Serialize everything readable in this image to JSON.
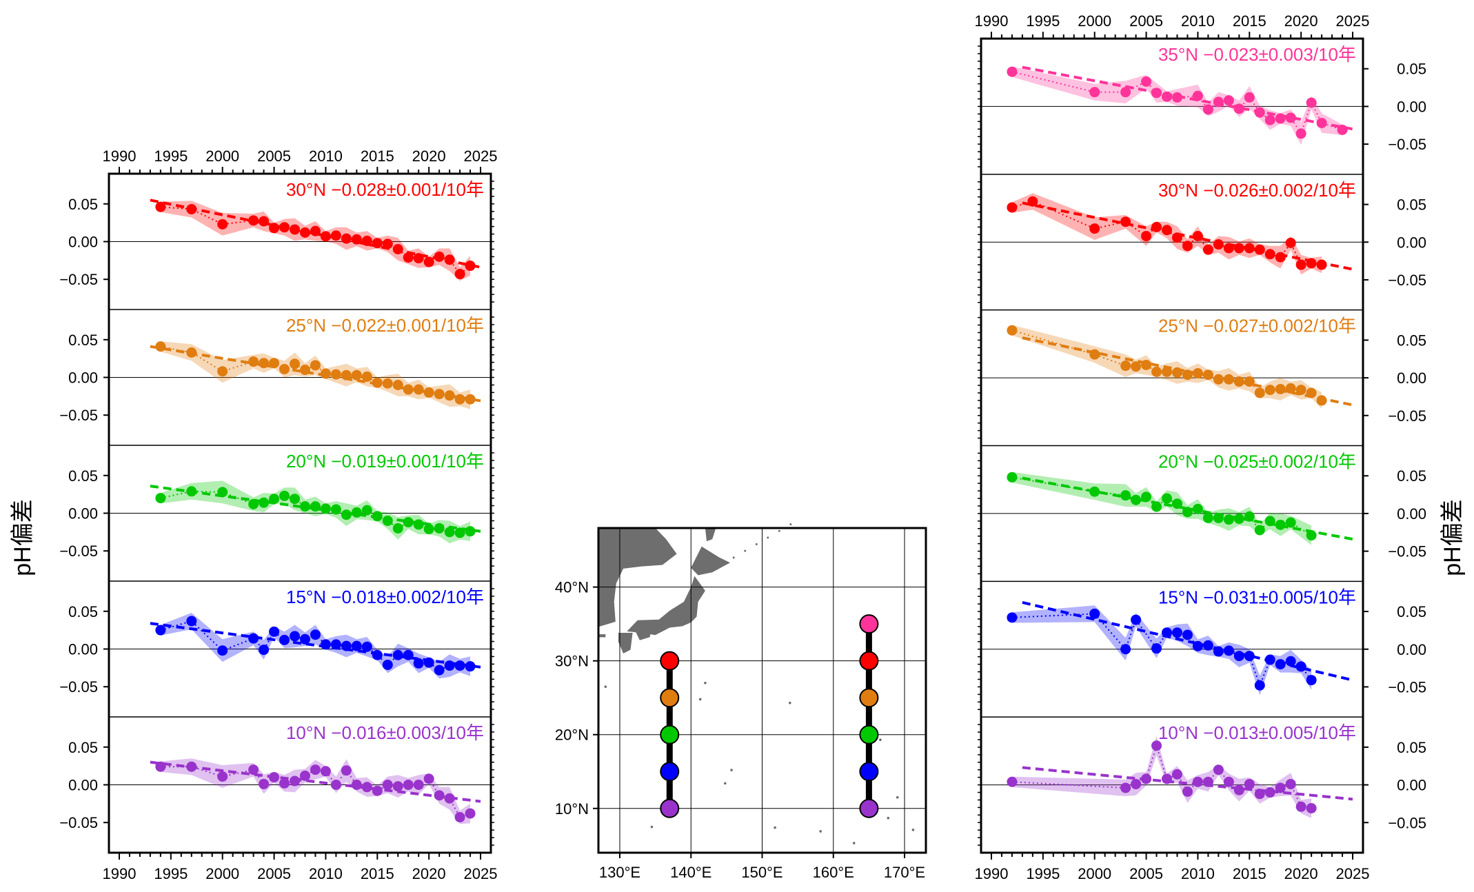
{
  "figure": {
    "ylabel": "pH偏差",
    "x_ticks": [
      "1990",
      "1995",
      "2000",
      "2005",
      "2010",
      "2015",
      "2020",
      "2025"
    ],
    "y_ticks": [
      "0.05",
      "0.00",
      "−0.05"
    ],
    "map_lat_ticks": [
      "10°N",
      "20°N",
      "30°N",
      "40°N"
    ],
    "map_lon_ticks": [
      "130°E",
      "140°E",
      "150°E",
      "160°E",
      "170°E"
    ]
  },
  "chart_data": [
    {
      "type": "line",
      "panel_group": "137°E",
      "x_range": [
        1989,
        2026
      ],
      "ylim": [
        -0.09,
        0.09
      ],
      "panels": [
        {
          "label": "30°N −0.028±0.001/10年",
          "color": "#ff0000",
          "x": [
            1994,
            1997,
            2000,
            2003,
            2004,
            2005,
            2006,
            2007,
            2008,
            2009,
            2010,
            2011,
            2012,
            2013,
            2014,
            2015,
            2016,
            2017,
            2018,
            2019,
            2020,
            2021,
            2022,
            2023,
            2024
          ],
          "y": [
            0.046,
            0.043,
            0.023,
            0.028,
            0.027,
            0.018,
            0.019,
            0.016,
            0.012,
            0.014,
            0.007,
            0.008,
            0.004,
            0.003,
            0.001,
            -0.002,
            -0.003,
            -0.01,
            -0.021,
            -0.022,
            -0.027,
            -0.02,
            -0.024,
            -0.043,
            -0.032
          ],
          "trend": [
            0.055,
            -0.034
          ]
        },
        {
          "label": "25°N −0.022±0.001/10年",
          "color": "#e07d10",
          "x": [
            1994,
            1997,
            2000,
            2003,
            2004,
            2005,
            2006,
            2007,
            2008,
            2009,
            2010,
            2011,
            2012,
            2013,
            2014,
            2015,
            2016,
            2017,
            2018,
            2019,
            2020,
            2021,
            2022,
            2023,
            2024
          ],
          "y": [
            0.041,
            0.033,
            0.008,
            0.021,
            0.019,
            0.019,
            0.011,
            0.018,
            0.01,
            0.016,
            0.005,
            0.004,
            0.003,
            0.003,
            0.001,
            -0.007,
            -0.008,
            -0.01,
            -0.016,
            -0.016,
            -0.02,
            -0.022,
            -0.024,
            -0.029,
            -0.029
          ],
          "trend": [
            0.041,
            -0.031
          ]
        },
        {
          "label": "20°N −0.019±0.001/10年",
          "color": "#00c800",
          "x": [
            1994,
            1997,
            2000,
            2003,
            2004,
            2005,
            2006,
            2007,
            2008,
            2009,
            2010,
            2011,
            2012,
            2013,
            2014,
            2015,
            2016,
            2017,
            2018,
            2019,
            2020,
            2021,
            2022,
            2023,
            2024
          ],
          "y": [
            0.02,
            0.029,
            0.028,
            0.012,
            0.014,
            0.019,
            0.023,
            0.019,
            0.009,
            0.009,
            0.006,
            0.005,
            -0.002,
            0.001,
            0.004,
            -0.004,
            -0.01,
            -0.02,
            -0.012,
            -0.015,
            -0.021,
            -0.02,
            -0.025,
            -0.026,
            -0.024
          ],
          "trend": [
            0.036,
            -0.024
          ]
        },
        {
          "label": "15°N −0.018±0.002/10年",
          "color": "#0000ff",
          "x": [
            1994,
            1997,
            2000,
            2003,
            2004,
            2005,
            2006,
            2007,
            2008,
            2009,
            2010,
            2011,
            2012,
            2013,
            2014,
            2015,
            2016,
            2017,
            2018,
            2019,
            2020,
            2021,
            2022,
            2023,
            2024
          ],
          "y": [
            0.025,
            0.037,
            -0.002,
            0.014,
            -0.001,
            0.023,
            0.012,
            0.017,
            0.013,
            0.019,
            0.006,
            0.006,
            0.004,
            0.004,
            0.003,
            -0.008,
            -0.021,
            -0.008,
            -0.008,
            -0.019,
            -0.018,
            -0.028,
            -0.022,
            -0.022,
            -0.023
          ],
          "trend": [
            0.034,
            -0.024
          ]
        },
        {
          "label": "10°N −0.016±0.003/10年",
          "color": "#9933cc",
          "x": [
            1994,
            1997,
            2000,
            2003,
            2004,
            2005,
            2006,
            2007,
            2008,
            2009,
            2010,
            2011,
            2012,
            2013,
            2014,
            2015,
            2016,
            2017,
            2018,
            2019,
            2020,
            2021,
            2022,
            2023,
            2024
          ],
          "y": [
            0.024,
            0.024,
            0.011,
            0.02,
            0.001,
            0.01,
            0.002,
            0.005,
            0.012,
            0.02,
            0.018,
            0.0,
            0.019,
            0.0,
            -0.003,
            -0.008,
            0.0,
            -0.002,
            0.0,
            0.0,
            0.008,
            -0.014,
            -0.018,
            -0.043,
            -0.038
          ],
          "trend": [
            0.03,
            -0.022
          ]
        }
      ]
    },
    {
      "type": "line",
      "panel_group": "165°E",
      "x_range": [
        1989,
        2026
      ],
      "ylim": [
        -0.09,
        0.09
      ],
      "panels": [
        {
          "label": "35°N −0.023±0.003/10年",
          "color": "#ff3399",
          "x": [
            1992,
            2000,
            2003,
            2005,
            2006,
            2007,
            2008,
            2010,
            2011,
            2012,
            2013,
            2014,
            2015,
            2016,
            2017,
            2018,
            2019,
            2020,
            2021,
            2022,
            2024
          ],
          "y": [
            0.046,
            0.019,
            0.019,
            0.033,
            0.018,
            0.013,
            0.012,
            0.014,
            -0.004,
            0.006,
            0.008,
            -0.003,
            0.012,
            -0.008,
            -0.018,
            -0.016,
            -0.015,
            -0.036,
            0.005,
            -0.022,
            -0.031
          ],
          "trend": [
            0.052,
            -0.03
          ]
        },
        {
          "label": "30°N −0.026±0.002/10年",
          "color": "#ff0000",
          "x": [
            1992,
            1994,
            2000,
            2003,
            2005,
            2006,
            2007,
            2008,
            2009,
            2010,
            2011,
            2012,
            2013,
            2014,
            2015,
            2016,
            2017,
            2018,
            2019,
            2020,
            2021,
            2022
          ],
          "y": [
            0.046,
            0.054,
            0.018,
            0.027,
            0.008,
            0.02,
            0.016,
            0.006,
            -0.005,
            0.008,
            -0.01,
            -0.003,
            -0.008,
            -0.008,
            -0.008,
            -0.01,
            -0.016,
            -0.02,
            -0.001,
            -0.03,
            -0.028,
            -0.03
          ],
          "trend": [
            0.052,
            -0.036
          ]
        },
        {
          "label": "25°N −0.027±0.002/10年",
          "color": "#e07d10",
          "x": [
            1992,
            2000,
            2003,
            2004,
            2005,
            2006,
            2007,
            2008,
            2009,
            2010,
            2011,
            2012,
            2013,
            2014,
            2015,
            2016,
            2017,
            2018,
            2019,
            2020,
            2021,
            2022
          ],
          "y": [
            0.063,
            0.031,
            0.016,
            0.015,
            0.017,
            0.008,
            0.008,
            0.007,
            0.004,
            0.006,
            0.004,
            -0.002,
            -0.002,
            -0.005,
            -0.005,
            -0.02,
            -0.016,
            -0.015,
            -0.014,
            -0.016,
            -0.02,
            -0.03
          ],
          "trend": [
            0.053,
            -0.036
          ]
        },
        {
          "label": "20°N −0.025±0.002/10年",
          "color": "#00c800",
          "x": [
            1992,
            2000,
            2003,
            2004,
            2005,
            2006,
            2007,
            2008,
            2009,
            2010,
            2011,
            2012,
            2013,
            2014,
            2015,
            2016,
            2017,
            2018,
            2019,
            2021
          ],
          "y": [
            0.048,
            0.029,
            0.024,
            0.018,
            0.022,
            0.009,
            0.02,
            0.013,
            0.002,
            0.006,
            -0.006,
            -0.006,
            -0.008,
            -0.007,
            -0.004,
            -0.022,
            -0.01,
            -0.015,
            -0.012,
            -0.029
          ],
          "trend": [
            0.047,
            -0.034
          ]
        },
        {
          "label": "15°N −0.031±0.005/10年",
          "color": "#0000ff",
          "x": [
            1992,
            2000,
            2003,
            2004,
            2006,
            2007,
            2008,
            2009,
            2010,
            2011,
            2012,
            2013,
            2014,
            2015,
            2016,
            2017,
            2018,
            2019,
            2020,
            2021
          ],
          "y": [
            0.042,
            0.047,
            0.0,
            0.039,
            0.001,
            0.022,
            0.022,
            0.019,
            0.004,
            0.005,
            -0.003,
            -0.002,
            -0.009,
            -0.009,
            -0.048,
            -0.014,
            -0.02,
            -0.016,
            -0.023,
            -0.041
          ],
          "trend": [
            0.062,
            -0.041
          ]
        },
        {
          "label": "10°N −0.013±0.005/10年",
          "color": "#9933cc",
          "x": [
            1992,
            2003,
            2004,
            2005,
            2006,
            2007,
            2008,
            2009,
            2010,
            2011,
            2012,
            2013,
            2014,
            2015,
            2016,
            2017,
            2018,
            2019,
            2020,
            2021
          ],
          "y": [
            0.004,
            -0.004,
            0.001,
            0.008,
            0.052,
            0.008,
            0.014,
            -0.009,
            0.004,
            0.004,
            0.02,
            0.004,
            -0.007,
            0.001,
            -0.012,
            -0.01,
            -0.004,
            0.001,
            -0.029,
            -0.031
          ],
          "trend": [
            0.023,
            -0.019
          ]
        }
      ]
    },
    {
      "type": "map",
      "lon_range": [
        127,
        173
      ],
      "lat_range": [
        4,
        48
      ],
      "stations_137E": [
        {
          "lon": 137,
          "lat": 30,
          "color": "#ff0000"
        },
        {
          "lon": 137,
          "lat": 25,
          "color": "#e07d10"
        },
        {
          "lon": 137,
          "lat": 20,
          "color": "#00c800"
        },
        {
          "lon": 137,
          "lat": 15,
          "color": "#0000ff"
        },
        {
          "lon": 137,
          "lat": 10,
          "color": "#9933cc"
        }
      ],
      "stations_165E": [
        {
          "lon": 165,
          "lat": 35,
          "color": "#ff3399"
        },
        {
          "lon": 165,
          "lat": 30,
          "color": "#ff0000"
        },
        {
          "lon": 165,
          "lat": 25,
          "color": "#e07d10"
        },
        {
          "lon": 165,
          "lat": 20,
          "color": "#00c800"
        },
        {
          "lon": 165,
          "lat": 15,
          "color": "#0000ff"
        },
        {
          "lon": 165,
          "lat": 10,
          "color": "#9933cc"
        }
      ],
      "land_color": "#6e6e6e"
    }
  ]
}
